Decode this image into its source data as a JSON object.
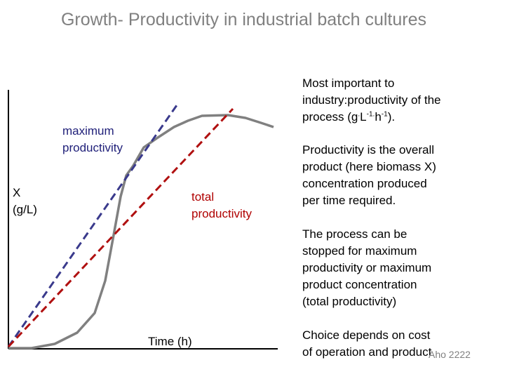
{
  "title": "Growth- Productivity in industrial batch cultures",
  "labels": {
    "max_productivity": [
      "maximum",
      "productivity"
    ],
    "y_axis": [
      "X",
      "(g/L)"
    ],
    "total_productivity": [
      "total",
      "productivity"
    ],
    "x_axis": "Time (h)"
  },
  "side_text": {
    "p1_line1": "Most important to",
    "p1_line2": "industry:productivity of the",
    "p1_line3_pre": "process (g",
    "p1_line3_dot1": ".",
    "p1_line3_L": "L",
    "p1_line3_exp1": "-1",
    "p1_line3_dot2": ".",
    "p1_line3_h": "h",
    "p1_line3_exp2": "-1",
    "p1_line3_post": ").",
    "p2": [
      "Productivity is the overall",
      "product (here biomass X)",
      "concentration produced",
      "per time required."
    ],
    "p3": [
      "The process can be",
      "stopped for maximum",
      "productivity or maximum",
      "product concentration",
      "(total productivity)"
    ],
    "p4": [
      "Choice depends on cost",
      "of operation and product"
    ]
  },
  "footer": "Aho 2222",
  "colors": {
    "growth_curve": "#808080",
    "max_productivity_line": "#3a3a8c",
    "total_productivity_line": "#b01010",
    "axes": "#000000",
    "title": "#808080"
  }
}
